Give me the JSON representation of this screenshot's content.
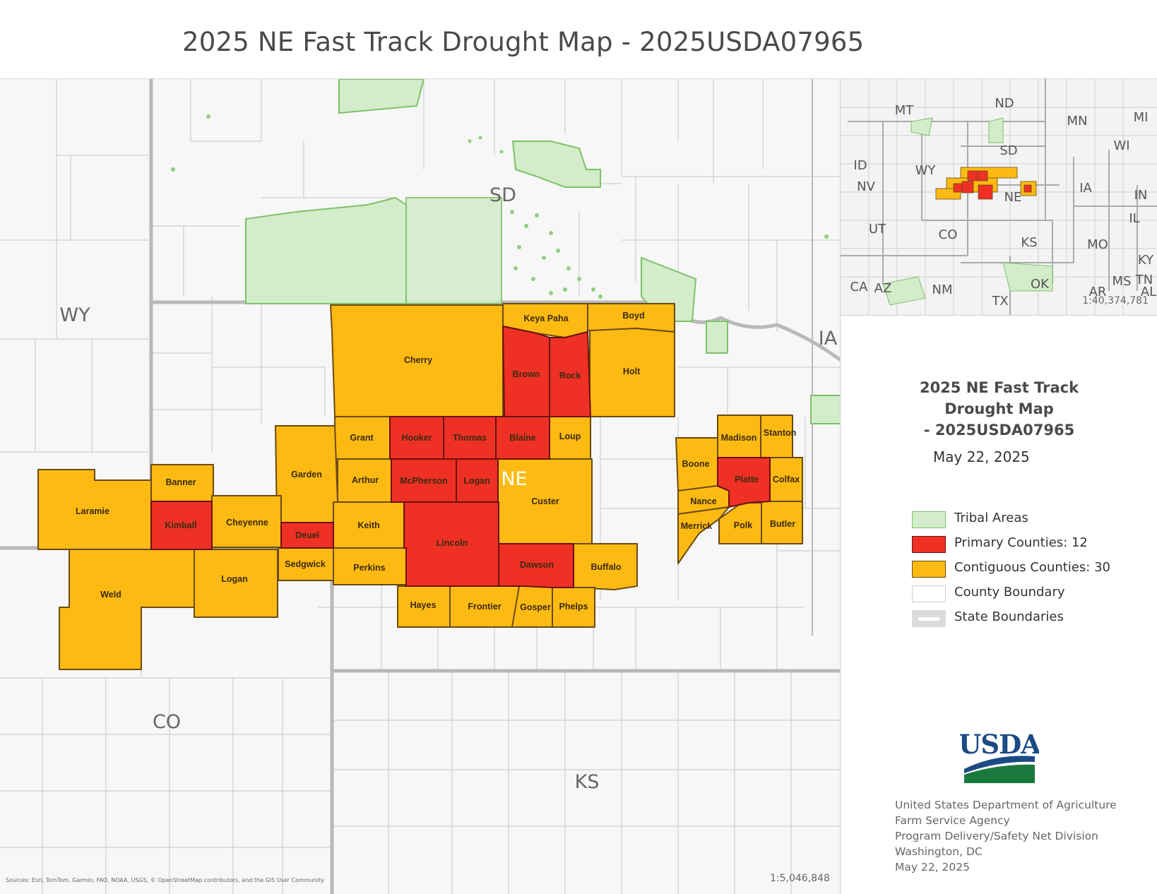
{
  "header": {
    "title": "2025 NE Fast Track Drought Map - 2025USDA07965"
  },
  "colors": {
    "primary": "#ee3124",
    "contiguous": "#fdba12",
    "tribal": "#d3ecc9",
    "tribal_stroke": "#7cc26a",
    "county_stroke": "#6b4a14",
    "boundary": "#c8c8c8",
    "state_boundary": "#b9b9b9"
  },
  "map": {
    "state_labels": [
      "WY",
      "SD",
      "NE",
      "IA",
      "CO",
      "KS"
    ],
    "primary_counties": [
      "Brown",
      "Rock",
      "Hooker",
      "Thomas",
      "Blaine",
      "McPherson",
      "Logan",
      "Kimball",
      "Deuel",
      "Lincoln",
      "Dawson",
      "Platte"
    ],
    "contiguous_counties": [
      "Keya Paha",
      "Boyd",
      "Cherry",
      "Holt",
      "Grant",
      "Loup",
      "Garden",
      "Arthur",
      "Custer",
      "Banner",
      "Laramie",
      "Cheyenne",
      "Keith",
      "Sedgwick",
      "Perkins",
      "Buffalo",
      "Weld",
      "Logan",
      "Hayes",
      "Frontier",
      "Gosper",
      "Phelps",
      "Madison",
      "Stanton",
      "Boone",
      "Colfax",
      "Nance",
      "Merrick",
      "Polk",
      "Butler"
    ],
    "scale": "1:5,046,848",
    "sources": "Sources: Esri, TomTom, Garmin, FAO, NOAA, USGS, © OpenStreetMap contributors, and the GIS User Community"
  },
  "inset": {
    "state_labels": [
      "MT",
      "ND",
      "MN",
      "MI",
      "WI",
      "SD",
      "ID",
      "WY",
      "NV",
      "NE",
      "IA",
      "IN",
      "UT",
      "CO",
      "IL",
      "KS",
      "MO",
      "KY",
      "CA",
      "AZ",
      "NM",
      "OK",
      "TX",
      "MS",
      "TN",
      "AR",
      "AL"
    ],
    "scale": "1:40,374,781"
  },
  "legend": {
    "title_lines": [
      "2025 NE Fast Track",
      "Drought Map",
      "- 2025USDA07965"
    ],
    "date": "May 22, 2025",
    "items": [
      {
        "label": "Tribal Areas",
        "color": "#d3ecc9"
      },
      {
        "label": "Primary Counties: 12",
        "color": "#ee3124"
      },
      {
        "label": "Contiguous Counties: 30",
        "color": "#fdba12"
      },
      {
        "label": "County Boundary",
        "color": "#ffffff"
      },
      {
        "label": "State Boundaries",
        "color": "#cccccc"
      }
    ]
  },
  "logo": {
    "text": "USDA"
  },
  "footer": {
    "lines": [
      "United States Department of Agriculture",
      "Farm Service Agency",
      "Program Delivery/Safety Net Division",
      "Washington, DC",
      "May 22, 2025"
    ]
  }
}
